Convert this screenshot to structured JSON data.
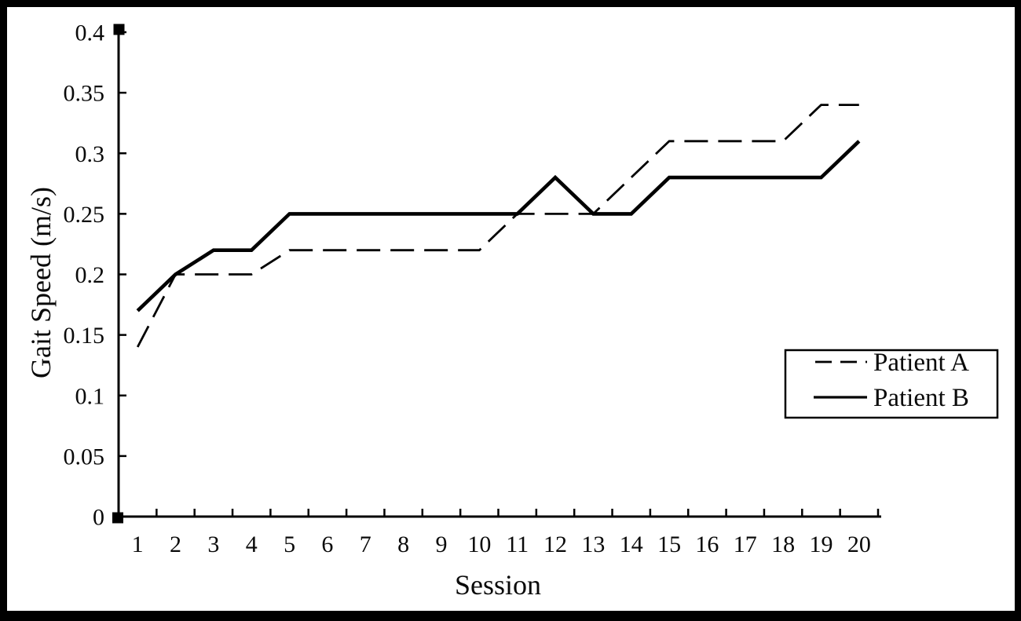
{
  "figure": {
    "frame_color": "#000000",
    "background_color": "#ffffff",
    "ink_color": "#000000"
  },
  "chart_data": {
    "type": "line",
    "title": "",
    "xlabel": "Session",
    "ylabel": "Gait Speed (m/s)",
    "x": [
      1,
      2,
      3,
      4,
      5,
      6,
      7,
      8,
      9,
      10,
      11,
      12,
      13,
      14,
      15,
      16,
      17,
      18,
      19,
      20
    ],
    "xtick_labels": [
      "1",
      "2",
      "3",
      "4",
      "5",
      "6",
      "7",
      "8",
      "9",
      "10",
      "11",
      "12",
      "13",
      "14",
      "15",
      "16",
      "17",
      "18",
      "19",
      "20"
    ],
    "ytick_values": [
      0,
      0.05,
      0.1,
      0.15,
      0.2,
      0.25,
      0.3,
      0.35,
      0.4
    ],
    "ytick_labels": [
      "0",
      "0.05",
      "0.1",
      "0.15",
      "0.2",
      "0.25",
      "0.3",
      "0.35",
      "0.4"
    ],
    "ylim": [
      0,
      0.4
    ],
    "grid": false,
    "legend_position": "right-middle",
    "series": [
      {
        "name": "Patient A",
        "style": "dashed",
        "color": "#000000",
        "values": [
          0.14,
          0.2,
          0.2,
          0.2,
          0.22,
          0.22,
          0.22,
          0.22,
          0.22,
          0.22,
          0.25,
          0.25,
          0.25,
          0.28,
          0.31,
          0.31,
          0.31,
          0.31,
          0.34,
          0.34
        ]
      },
      {
        "name": "Patient B",
        "style": "solid",
        "color": "#000000",
        "values": [
          0.17,
          0.2,
          0.22,
          0.22,
          0.25,
          0.25,
          0.25,
          0.25,
          0.25,
          0.25,
          0.25,
          0.28,
          0.25,
          0.25,
          0.28,
          0.28,
          0.28,
          0.28,
          0.28,
          0.31
        ]
      }
    ]
  }
}
